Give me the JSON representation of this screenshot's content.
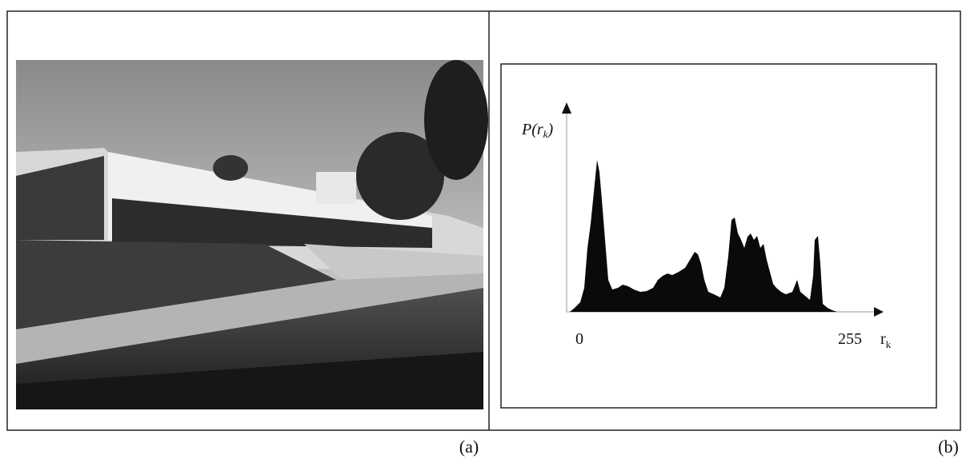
{
  "panels": [
    {
      "label": "(a)"
    },
    {
      "label": "(b)",
      "y_axis_label": {
        "main": "P(r",
        "sub": "k",
        "close": ")"
      },
      "x_ticks": [
        "0",
        "255"
      ],
      "x_axis_label": {
        "main": "r",
        "sub": "k"
      }
    }
  ]
}
